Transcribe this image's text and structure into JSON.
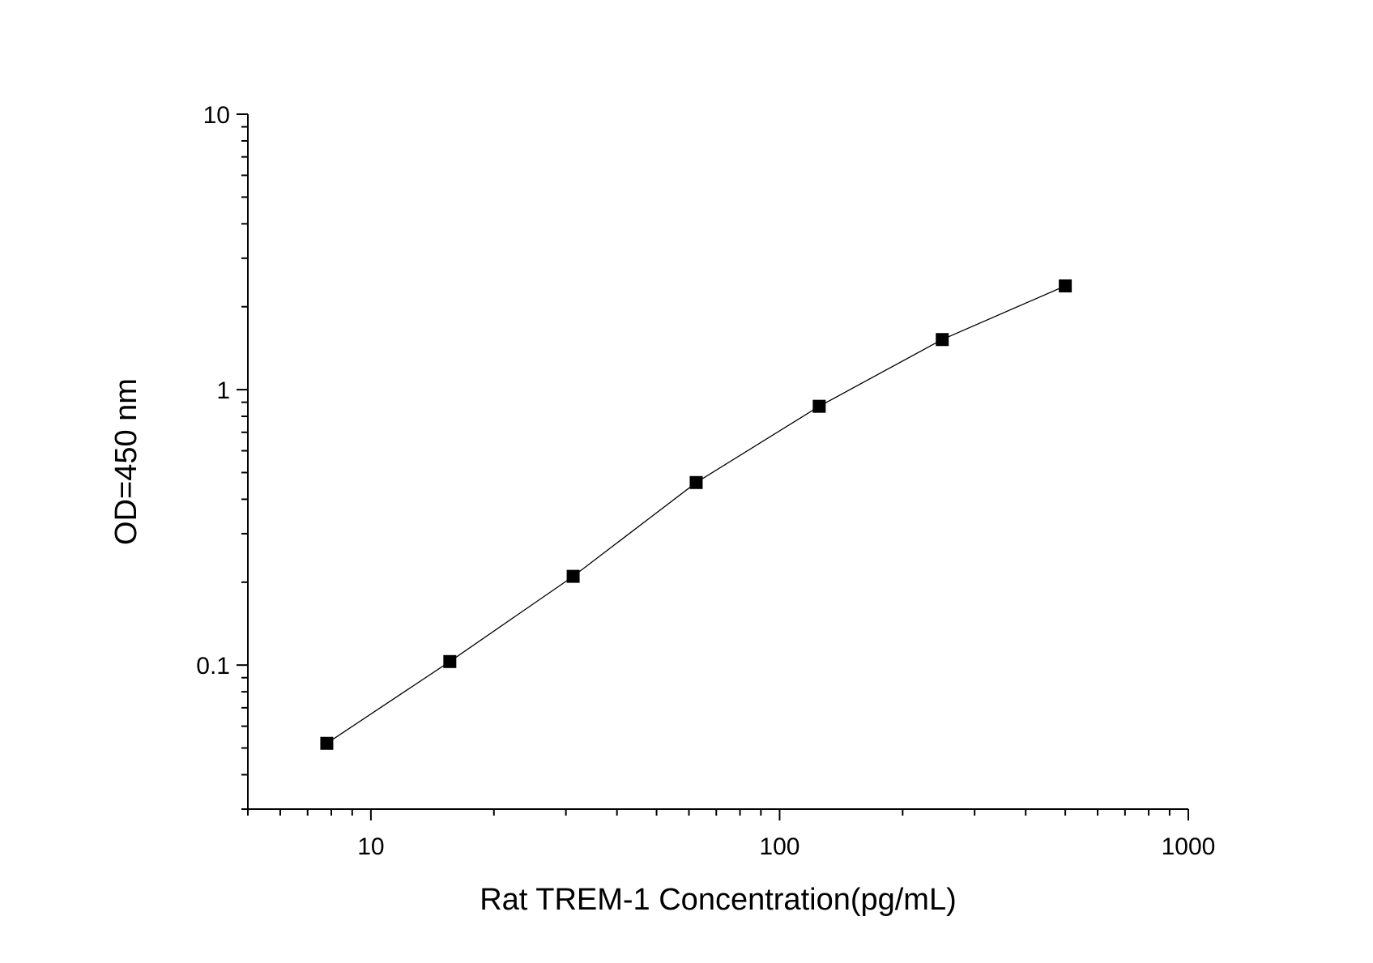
{
  "chart_data": {
    "type": "scatter",
    "title": "",
    "xlabel": "Rat TREM-1 Concentration(pg/mL)",
    "ylabel": "OD=450 nm",
    "x_scale": "log",
    "y_scale": "log",
    "xlim": [
      5,
      1000
    ],
    "ylim": [
      0.03,
      10
    ],
    "x_ticks": [
      10,
      100,
      1000
    ],
    "x_tick_labels": [
      "10",
      "100",
      "1000"
    ],
    "y_ticks": [
      0.1,
      1,
      10
    ],
    "y_tick_labels": [
      "0.1",
      "1",
      "10"
    ],
    "grid": false,
    "legend": "none",
    "series": [
      {
        "x": [
          7.8,
          15.6,
          31.25,
          62.5,
          125,
          250,
          500
        ],
        "y": [
          0.052,
          0.103,
          0.21,
          0.46,
          0.87,
          1.52,
          2.38
        ],
        "marker": "square",
        "line": true,
        "marker_color": "#000000",
        "line_color": "#000000"
      }
    ]
  }
}
